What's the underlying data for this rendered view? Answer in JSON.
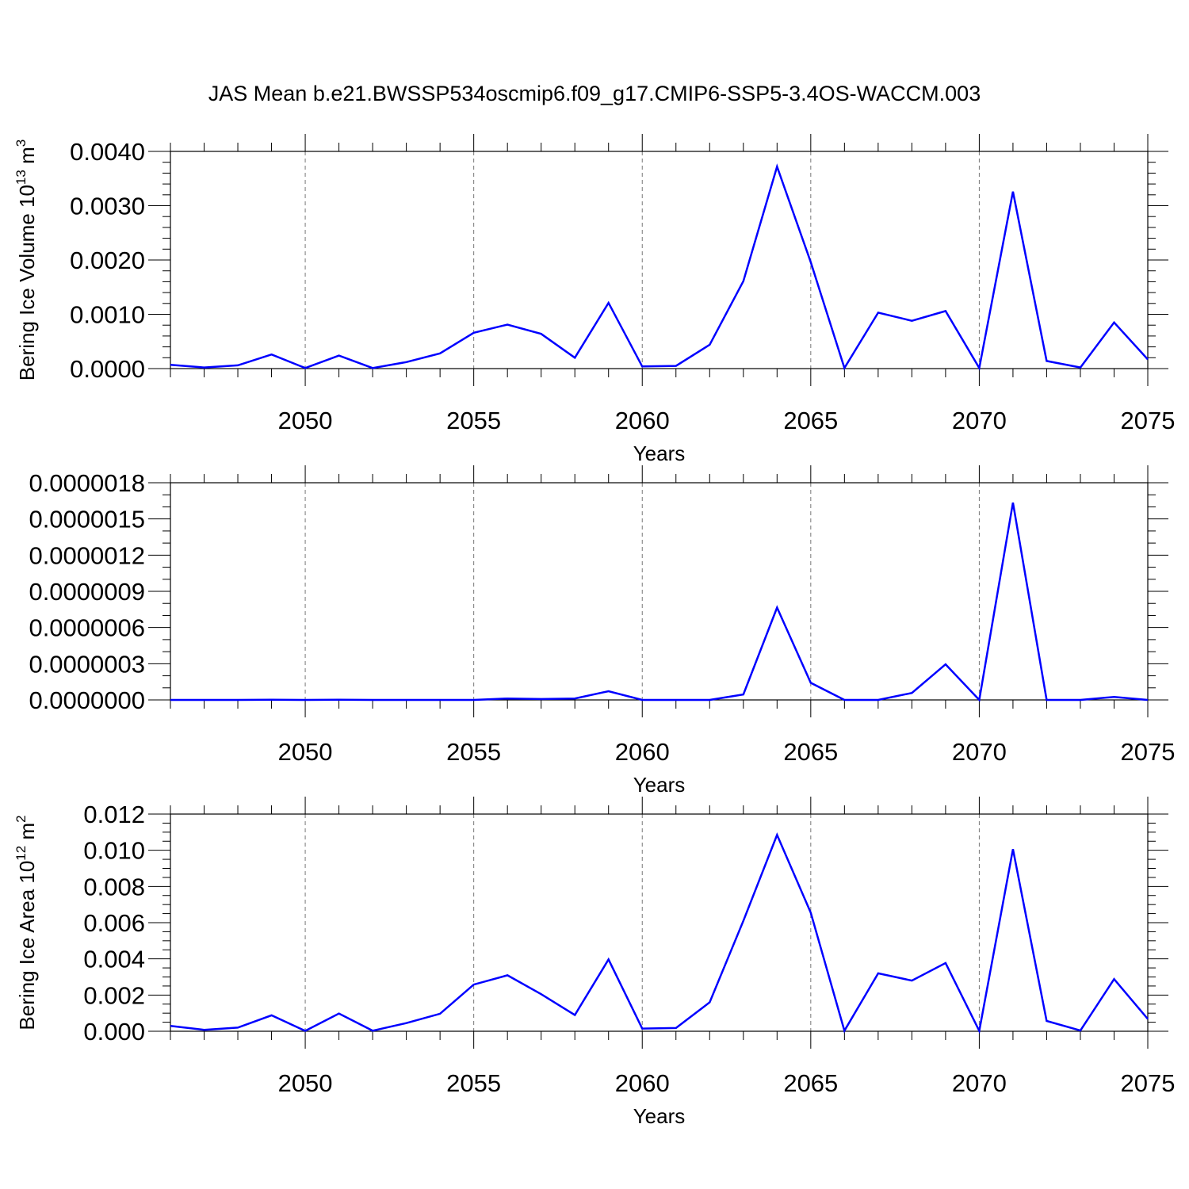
{
  "chart_data": [
    {
      "type": "line",
      "title": "JAS Mean b.e21.BWSSP534oscmip6.f09_g17.CMIP6-SSP5-3.4OS-WACCM.003",
      "ylabel": "Bering Ice Volume 10",
      "ylabel_exp": "13",
      "ylabel_unit": " m",
      "ylabel_unit_exp": "3",
      "xlabel": "Years",
      "xlim": [
        2046,
        2075
      ],
      "ylim": [
        0,
        0.004
      ],
      "yticks": [
        0,
        0.001,
        0.002,
        0.003,
        0.004
      ],
      "ytick_labels": [
        "0.0000",
        "0.0010",
        "0.0020",
        "0.0030",
        "0.0040"
      ],
      "xticks": [
        2050,
        2055,
        2060,
        2065,
        2070,
        2075
      ],
      "xtick_labels": [
        "2050",
        "2055",
        "2060",
        "2065",
        "2070",
        "2075"
      ],
      "color": "#0000ff",
      "x": [
        2046,
        2047,
        2048,
        2049,
        2050,
        2051,
        2052,
        2053,
        2054,
        2055,
        2056,
        2057,
        2058,
        2059,
        2060,
        2061,
        2062,
        2063,
        2064,
        2065,
        2066,
        2067,
        2068,
        2069,
        2070,
        2071,
        2072,
        2073,
        2074,
        2075
      ],
      "values": [
        7e-05,
        2e-05,
        6e-05,
        0.00026,
        1e-05,
        0.00024,
        1e-05,
        0.00012,
        0.00028,
        0.00066,
        0.00081,
        0.00064,
        0.0002,
        0.00121,
        4e-05,
        5e-05,
        0.00044,
        0.00161,
        0.00372,
        0.00196,
        1e-05,
        0.00103,
        0.00088,
        0.00106,
        1e-05,
        0.00326,
        0.00014,
        2e-05,
        0.00085,
        0.00017
      ]
    },
    {
      "type": "line",
      "title": "",
      "ylabel": "",
      "xlabel": "Years",
      "xlim": [
        2046,
        2075
      ],
      "ylim": [
        0,
        1.8e-06
      ],
      "yticks": [
        0,
        3e-07,
        6e-07,
        9e-07,
        1.2e-06,
        1.5e-06,
        1.8e-06
      ],
      "ytick_labels": [
        "0.0000000",
        "0.0000003",
        "0.0000006",
        "0.0000009",
        "0.0000012",
        "0.0000015",
        "0.0000018"
      ],
      "xticks": [
        2050,
        2055,
        2060,
        2065,
        2070,
        2075
      ],
      "xtick_labels": [
        "2050",
        "2055",
        "2060",
        "2065",
        "2070",
        "2075"
      ],
      "color": "#0000ff",
      "x": [
        2046,
        2047,
        2048,
        2049,
        2050,
        2051,
        2052,
        2053,
        2054,
        2055,
        2056,
        2057,
        2058,
        2059,
        2060,
        2061,
        2062,
        2063,
        2064,
        2065,
        2066,
        2067,
        2068,
        2069,
        2070,
        2071,
        2072,
        2073,
        2074,
        2075
      ],
      "values": [
        0,
        0,
        0,
        1e-09,
        0,
        1e-09,
        0,
        0,
        0,
        0,
        1.2e-08,
        7e-09,
        1.2e-08,
        7.2e-08,
        0,
        0,
        0,
        4.5e-08,
        7.65e-07,
        1.42e-07,
        0,
        0,
        5.8e-08,
        2.95e-07,
        0,
        1.635e-06,
        0,
        0,
        2.5e-08,
        0
      ]
    },
    {
      "type": "line",
      "title": "",
      "ylabel": "Bering Ice Area 10",
      "ylabel_exp": "12",
      "ylabel_unit": " m",
      "ylabel_unit_exp": "2",
      "xlabel": "Years",
      "xlim": [
        2046,
        2075
      ],
      "ylim": [
        0,
        0.012
      ],
      "yticks": [
        0,
        0.002,
        0.004,
        0.006,
        0.008,
        0.01,
        0.012
      ],
      "ytick_labels": [
        "0.000",
        "0.002",
        "0.004",
        "0.006",
        "0.008",
        "0.010",
        "0.012"
      ],
      "xticks": [
        2050,
        2055,
        2060,
        2065,
        2070,
        2075
      ],
      "xtick_labels": [
        "2050",
        "2055",
        "2060",
        "2065",
        "2070",
        "2075"
      ],
      "color": "#0000ff",
      "x": [
        2046,
        2047,
        2048,
        2049,
        2050,
        2051,
        2052,
        2053,
        2054,
        2055,
        2056,
        2057,
        2058,
        2059,
        2060,
        2061,
        2062,
        2063,
        2064,
        2065,
        2066,
        2067,
        2068,
        2069,
        2070,
        2071,
        2072,
        2073,
        2074,
        2075
      ],
      "values": [
        0.0003,
        8e-05,
        0.0002,
        0.00088,
        2e-05,
        0.00098,
        3e-05,
        0.00045,
        0.00097,
        0.00258,
        0.00309,
        0.00205,
        0.0009,
        0.00397,
        0.00015,
        0.00018,
        0.0016,
        0.0061,
        0.01085,
        0.00655,
        3e-05,
        0.0032,
        0.0028,
        0.00377,
        2e-05,
        0.01006,
        0.00057,
        4e-05,
        0.00288,
        0.00068
      ]
    }
  ]
}
